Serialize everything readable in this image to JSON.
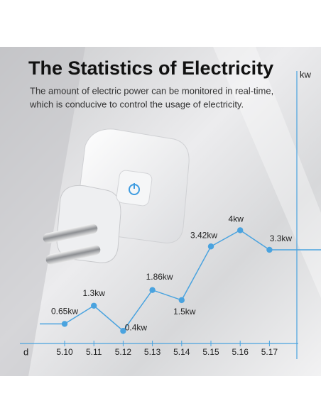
{
  "chart_data": {
    "type": "line",
    "title": "The Statistics of Electricity",
    "subtitle": [
      "The amount of electric power can be monitored in real-time,",
      "which is conducive to control the usage of electricity."
    ],
    "y_label": "kw",
    "x_label": "d",
    "categories": [
      "5.10",
      "5.11",
      "5.12",
      "5.13",
      "5.14",
      "5.15",
      "5.16",
      "5.17"
    ],
    "series": [
      {
        "name": "kw",
        "color": "#4aa3df",
        "values": [
          0.65,
          1.3,
          0.4,
          1.86,
          1.5,
          3.42,
          4,
          3.3
        ],
        "value_labels": [
          "0.65kw",
          "1.3kw",
          "0.4kw",
          "1.86kw",
          "1.5kw",
          "3.42kw",
          "4kw",
          "3.3kw"
        ]
      }
    ],
    "ylim": [
      0,
      10
    ]
  }
}
